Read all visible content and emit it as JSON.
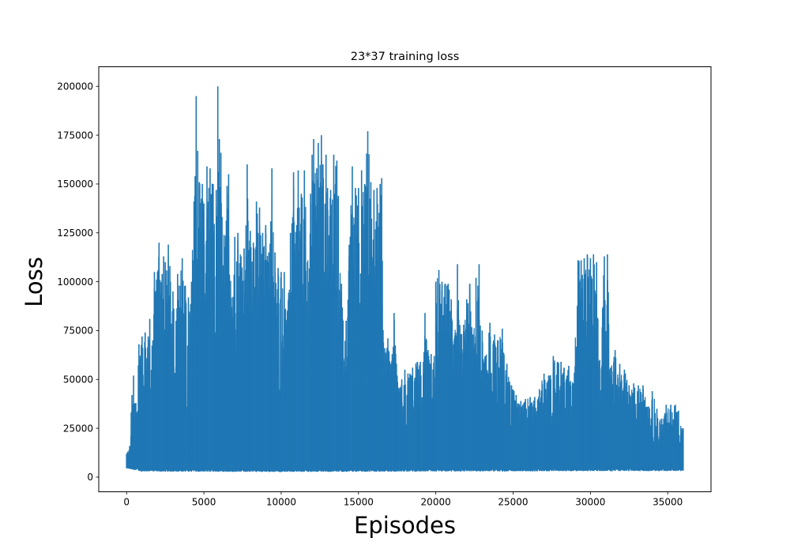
{
  "chart_data": {
    "type": "line",
    "title": "23*37 training loss",
    "xlabel": "Episodes",
    "ylabel": "Loss",
    "xlim": [
      -1800,
      37800
    ],
    "ylim": [
      -7500,
      210000
    ],
    "x_ticks": [
      0,
      5000,
      10000,
      15000,
      20000,
      25000,
      30000,
      35000
    ],
    "y_ticks": [
      0,
      25000,
      50000,
      75000,
      100000,
      125000,
      150000,
      175000,
      200000
    ],
    "grid": false,
    "legend": "none",
    "colors": {
      "series": "#1f77b4",
      "axes": "#000000",
      "background": "#ffffff"
    },
    "series": [
      {
        "x_range": [
          0,
          36000
        ],
        "floor_profile": [
          [
            0,
            4500
          ],
          [
            1000,
            3000
          ],
          [
            10000,
            2800
          ],
          [
            20000,
            3000
          ],
          [
            36000,
            3300
          ]
        ],
        "envelope": [
          [
            0,
            12000
          ],
          [
            200,
            16000
          ],
          [
            300,
            33000
          ],
          [
            350,
            42000
          ],
          [
            450,
            52000
          ],
          [
            600,
            38000
          ],
          [
            800,
            68000
          ],
          [
            1000,
            72000
          ],
          [
            1200,
            74000
          ],
          [
            1400,
            72000
          ],
          [
            1500,
            81000
          ],
          [
            1700,
            70000
          ],
          [
            1800,
            105000
          ],
          [
            2000,
            105000
          ],
          [
            2100,
            120000
          ],
          [
            2300,
            104000
          ],
          [
            2400,
            113000
          ],
          [
            2500,
            110000
          ],
          [
            2700,
            119000
          ],
          [
            2800,
            108000
          ],
          [
            3000,
            95000
          ],
          [
            3200,
            80000
          ],
          [
            3300,
            104000
          ],
          [
            3400,
            98000
          ],
          [
            3600,
            112000
          ],
          [
            3800,
            98000
          ],
          [
            4000,
            92000
          ],
          [
            4200,
            100000
          ],
          [
            4500,
            195000
          ],
          [
            4600,
            167000
          ],
          [
            4700,
            151000
          ],
          [
            4900,
            150000
          ],
          [
            5000,
            140000
          ],
          [
            5200,
            159000
          ],
          [
            5400,
            158000
          ],
          [
            5600,
            150000
          ],
          [
            5800,
            147000
          ],
          [
            5900,
            200000
          ],
          [
            6000,
            173000
          ],
          [
            6100,
            166000
          ],
          [
            6300,
            124000
          ],
          [
            6500,
            149000
          ],
          [
            6600,
            155000
          ],
          [
            6800,
            87000
          ],
          [
            7000,
            123000
          ],
          [
            7200,
            125000
          ],
          [
            7400,
            113000
          ],
          [
            7600,
            117000
          ],
          [
            7800,
            160000
          ],
          [
            8000,
            126000
          ],
          [
            8200,
            120000
          ],
          [
            8400,
            141000
          ],
          [
            8600,
            138000
          ],
          [
            8800,
            125000
          ],
          [
            9000,
            129000
          ],
          [
            9200,
            115000
          ],
          [
            9400,
            158000
          ],
          [
            9600,
            115000
          ],
          [
            9800,
            107000
          ],
          [
            10000,
            105000
          ],
          [
            10200,
            105000
          ],
          [
            10400,
            85000
          ],
          [
            10600,
            125000
          ],
          [
            10800,
            156000
          ],
          [
            11000,
            129000
          ],
          [
            11100,
            157000
          ],
          [
            11300,
            145000
          ],
          [
            11500,
            157000
          ],
          [
            11700,
            110000
          ],
          [
            11900,
            145000
          ],
          [
            12000,
            165000
          ],
          [
            12100,
            173000
          ],
          [
            12300,
            158000
          ],
          [
            12400,
            171000
          ],
          [
            12600,
            175000
          ],
          [
            12700,
            160000
          ],
          [
            12900,
            165000
          ],
          [
            13000,
            148000
          ],
          [
            13200,
            147000
          ],
          [
            13400,
            165000
          ],
          [
            13600,
            162000
          ],
          [
            13700,
            144000
          ],
          [
            13900,
            99000
          ],
          [
            14000,
            80000
          ],
          [
            14200,
            80000
          ],
          [
            14400,
            119000
          ],
          [
            14600,
            159000
          ],
          [
            14800,
            148000
          ],
          [
            15000,
            148000
          ],
          [
            15200,
            157000
          ],
          [
            15400,
            150000
          ],
          [
            15600,
            177000
          ],
          [
            15800,
            151000
          ],
          [
            16000,
            147000
          ],
          [
            16200,
            148000
          ],
          [
            16400,
            150000
          ],
          [
            16500,
            153000
          ],
          [
            16700,
            66000
          ],
          [
            16900,
            71000
          ],
          [
            17100,
            58000
          ],
          [
            17300,
            84000
          ],
          [
            17500,
            52000
          ],
          [
            17800,
            50000
          ],
          [
            18000,
            55000
          ],
          [
            18200,
            53000
          ],
          [
            18500,
            56000
          ],
          [
            18800,
            59000
          ],
          [
            19000,
            59000
          ],
          [
            19200,
            59000
          ],
          [
            19300,
            84000
          ],
          [
            19500,
            65000
          ],
          [
            19700,
            63000
          ],
          [
            19900,
            62000
          ],
          [
            20000,
            100000
          ],
          [
            20200,
            106000
          ],
          [
            20400,
            100000
          ],
          [
            20600,
            99000
          ],
          [
            20800,
            99000
          ],
          [
            21000,
            91000
          ],
          [
            21200,
            71000
          ],
          [
            21400,
            109000
          ],
          [
            21600,
            73000
          ],
          [
            21800,
            78000
          ],
          [
            22000,
            91000
          ],
          [
            22200,
            99000
          ],
          [
            22400,
            73000
          ],
          [
            22600,
            102000
          ],
          [
            22800,
            109000
          ],
          [
            23000,
            75000
          ],
          [
            23200,
            62000
          ],
          [
            23500,
            79000
          ],
          [
            23800,
            73000
          ],
          [
            24000,
            70000
          ],
          [
            24300,
            76000
          ],
          [
            24600,
            58000
          ],
          [
            24900,
            47000
          ],
          [
            25200,
            42000
          ],
          [
            25500,
            39000
          ],
          [
            25800,
            40000
          ],
          [
            26100,
            41000
          ],
          [
            26400,
            41000
          ],
          [
            26700,
            45000
          ],
          [
            27000,
            53000
          ],
          [
            27300,
            52000
          ],
          [
            27600,
            62000
          ],
          [
            27900,
            59000
          ],
          [
            28100,
            59000
          ],
          [
            28300,
            56000
          ],
          [
            28600,
            57000
          ],
          [
            28900,
            48000
          ],
          [
            29200,
            111000
          ],
          [
            29400,
            111000
          ],
          [
            29600,
            112000
          ],
          [
            29800,
            114000
          ],
          [
            30000,
            112000
          ],
          [
            30200,
            114000
          ],
          [
            30400,
            110000
          ],
          [
            30600,
            60000
          ],
          [
            30900,
            113000
          ],
          [
            31100,
            114000
          ],
          [
            31300,
            56000
          ],
          [
            31600,
            65000
          ],
          [
            31900,
            58000
          ],
          [
            32200,
            55000
          ],
          [
            32500,
            47000
          ],
          [
            32800,
            48000
          ],
          [
            33100,
            47000
          ],
          [
            33400,
            47000
          ],
          [
            33700,
            36000
          ],
          [
            34000,
            44000
          ],
          [
            34300,
            35000
          ],
          [
            34600,
            30000
          ],
          [
            34900,
            37000
          ],
          [
            35200,
            37000
          ],
          [
            35500,
            37000
          ],
          [
            35700,
            34000
          ],
          [
            35900,
            25000
          ],
          [
            36000,
            25000
          ]
        ]
      }
    ]
  }
}
